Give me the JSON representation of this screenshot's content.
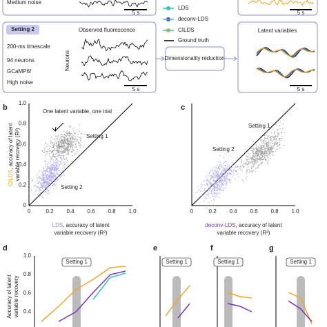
{
  "top": {
    "noise_top": "Medium noise",
    "scale_a": "5 s",
    "scale_b": "5 s",
    "legend": [
      "LDS",
      "deconv-LDS",
      "CILDS",
      "Ground truth"
    ],
    "setting2": {
      "tag": "Setting 2",
      "title": "Observed fluorescence",
      "lines": [
        "200-ms timescale",
        "94 neurons",
        "GCaMP6f",
        "High noise"
      ],
      "axis": "Neurons",
      "scale": "5 s"
    },
    "reduction": "Dimensionality reduction",
    "latent": {
      "title": "Latent variables",
      "scale": "5 s"
    }
  },
  "panel_b": {
    "label": "b",
    "note": "One latent variable, one trial",
    "s1": "Setting 1",
    "s2": "Setting 2",
    "ylabel_method": "CILDS",
    "ylabel_rest": ", accuracy of latent",
    "ylabel_2": "variable recovery (R²)",
    "xlabel_method": "LDS",
    "xlabel_rest": ", accuracy of latent",
    "xlabel_2": "variable recovery (R²)",
    "yticks": [
      "0",
      "0.2",
      "0.4",
      "0.6",
      "0.8",
      "1.0"
    ],
    "xticks": [
      "0",
      "0.2",
      "0.4",
      "0.6",
      "0.8",
      "1.0"
    ]
  },
  "panel_c": {
    "label": "c",
    "s1": "Setting 1",
    "s2": "Setting 2",
    "xlabel_method": "deconv-LDS",
    "xlabel_rest": ", accuracy of latent",
    "xlabel_2": "variable recovery (R²)",
    "xticks": [
      "0",
      "0.2",
      "0.4",
      "0.6",
      "0.8",
      "1.0"
    ]
  },
  "bottom": {
    "labels": [
      "d",
      "e",
      "f",
      "g"
    ],
    "setting": "Setting 1",
    "yticks": [
      "1.0",
      "0.8",
      "0.6",
      "0.4"
    ],
    "ylabel_1": "Accuracy of latent",
    "ylabel_2": "variable recovery"
  }
}
